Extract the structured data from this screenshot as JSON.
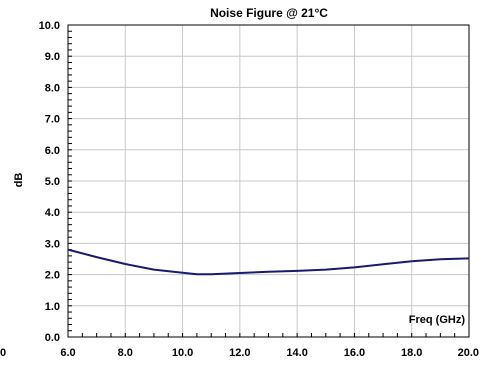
{
  "chart_data": {
    "type": "line",
    "title": "Noise Figure @ 21°C",
    "xlabel": "Freq (GHz)",
    "ylabel": "dB",
    "xlim": [
      6.0,
      20.0
    ],
    "ylim": [
      0.0,
      10.0
    ],
    "x_ticks": [
      6.0,
      8.0,
      10.0,
      12.0,
      14.0,
      16.0,
      18.0,
      20.0
    ],
    "x_tick_labels": [
      "6.0",
      "8.0",
      "10.0",
      "12.0",
      "14.0",
      "16.0",
      "18.0",
      "20.0"
    ],
    "y_ticks": [
      0.0,
      1.0,
      2.0,
      3.0,
      4.0,
      5.0,
      6.0,
      7.0,
      8.0,
      9.0,
      10.0
    ],
    "y_tick_labels": [
      "0.0",
      "1.0",
      "2.0",
      "3.0",
      "4.0",
      "5.0",
      "6.0",
      "7.0",
      "8.0",
      "9.0",
      "10.0"
    ],
    "stray_label": "0",
    "grid": true,
    "series": [
      {
        "color": "#1a1a6e",
        "x": [
          6.0,
          7.0,
          8.0,
          9.0,
          10.0,
          10.5,
          11.0,
          12.0,
          13.0,
          14.0,
          15.0,
          16.0,
          17.0,
          18.0,
          19.0,
          20.0
        ],
        "y": [
          2.8,
          2.56,
          2.34,
          2.16,
          2.06,
          2.01,
          2.01,
          2.05,
          2.09,
          2.12,
          2.16,
          2.23,
          2.33,
          2.43,
          2.49,
          2.52
        ]
      }
    ]
  }
}
